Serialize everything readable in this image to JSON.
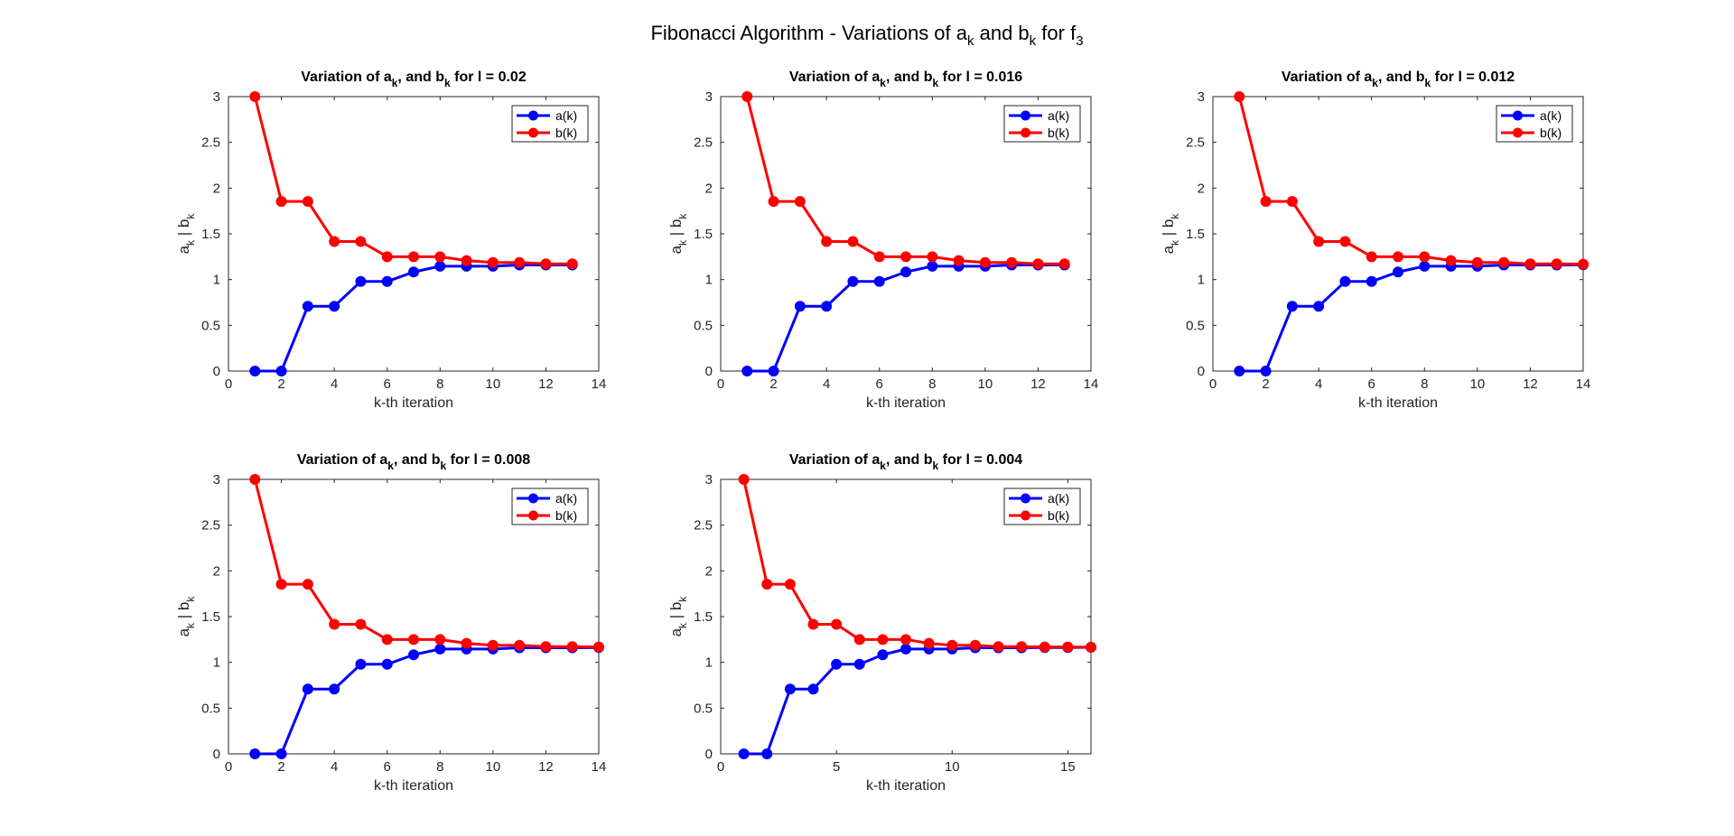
{
  "figure": {
    "title_main": "Fibonacci Algorithm - Variations of a",
    "title_sub1": "k",
    "title_mid": " and b",
    "title_sub2": "k",
    "title_end": " for f",
    "title_sub3": "3"
  },
  "chart_data": [
    {
      "type": "line",
      "title": "Variation of a_k, and b_k for l = 0.02",
      "title_l": "0.02",
      "xlabel": "k-th iteration",
      "ylabel": "a_k | b_k",
      "xlim": [
        0,
        14
      ],
      "ylim": [
        0,
        3
      ],
      "xticks": [
        0,
        2,
        4,
        6,
        8,
        10,
        12,
        14
      ],
      "yticks": [
        0,
        0.5,
        1,
        1.5,
        2,
        2.5,
        3
      ],
      "legend_position": "top-right",
      "grid": false,
      "series": [
        {
          "name": "a(k)",
          "color": "#0000ff",
          "x": [
            1,
            2,
            3,
            4,
            5,
            6,
            7,
            8,
            9,
            10,
            11,
            12,
            13
          ],
          "y": [
            0,
            0,
            0.708,
            0.708,
            0.979,
            0.979,
            1.083,
            1.146,
            1.146,
            1.146,
            1.159,
            1.159,
            1.159
          ]
        },
        {
          "name": "b(k)",
          "color": "#ff0000",
          "x": [
            1,
            2,
            3,
            4,
            5,
            6,
            7,
            8,
            9,
            10,
            11,
            12,
            13
          ],
          "y": [
            3,
            1.854,
            1.854,
            1.416,
            1.416,
            1.25,
            1.25,
            1.25,
            1.208,
            1.187,
            1.187,
            1.172,
            1.172
          ]
        }
      ]
    },
    {
      "type": "line",
      "title": "Variation of a_k, and b_k for l = 0.016",
      "title_l": "0.016",
      "xlabel": "k-th iteration",
      "ylabel": "a_k | b_k",
      "xlim": [
        0,
        14
      ],
      "ylim": [
        0,
        3
      ],
      "xticks": [
        0,
        2,
        4,
        6,
        8,
        10,
        12,
        14
      ],
      "yticks": [
        0,
        0.5,
        1,
        1.5,
        2,
        2.5,
        3
      ],
      "legend_position": "top-right",
      "grid": false,
      "series": [
        {
          "name": "a(k)",
          "color": "#0000ff",
          "x": [
            1,
            2,
            3,
            4,
            5,
            6,
            7,
            8,
            9,
            10,
            11,
            12,
            13
          ],
          "y": [
            0,
            0,
            0.708,
            0.708,
            0.979,
            0.979,
            1.083,
            1.146,
            1.146,
            1.146,
            1.159,
            1.159,
            1.159
          ]
        },
        {
          "name": "b(k)",
          "color": "#ff0000",
          "x": [
            1,
            2,
            3,
            4,
            5,
            6,
            7,
            8,
            9,
            10,
            11,
            12,
            13
          ],
          "y": [
            3,
            1.854,
            1.854,
            1.416,
            1.416,
            1.25,
            1.25,
            1.25,
            1.208,
            1.187,
            1.187,
            1.172,
            1.172
          ]
        }
      ]
    },
    {
      "type": "line",
      "title": "Variation of a_k, and b_k for l = 0.012",
      "title_l": "0.012",
      "xlabel": "k-th iteration",
      "ylabel": "a_k | b_k",
      "xlim": [
        0,
        14
      ],
      "ylim": [
        0,
        3
      ],
      "xticks": [
        0,
        2,
        4,
        6,
        8,
        10,
        12,
        14
      ],
      "yticks": [
        0,
        0.5,
        1,
        1.5,
        2,
        2.5,
        3
      ],
      "legend_position": "top-right",
      "grid": false,
      "series": [
        {
          "name": "a(k)",
          "color": "#0000ff",
          "x": [
            1,
            2,
            3,
            4,
            5,
            6,
            7,
            8,
            9,
            10,
            11,
            12,
            13,
            14
          ],
          "y": [
            0,
            0,
            0.708,
            0.708,
            0.979,
            0.979,
            1.083,
            1.146,
            1.146,
            1.146,
            1.159,
            1.159,
            1.159,
            1.162
          ]
        },
        {
          "name": "b(k)",
          "color": "#ff0000",
          "x": [
            1,
            2,
            3,
            4,
            5,
            6,
            7,
            8,
            9,
            10,
            11,
            12,
            13,
            14
          ],
          "y": [
            3,
            1.854,
            1.854,
            1.416,
            1.416,
            1.25,
            1.25,
            1.25,
            1.208,
            1.187,
            1.187,
            1.172,
            1.172,
            1.168
          ]
        }
      ]
    },
    {
      "type": "line",
      "title": "Variation of a_k, and b_k for l = 0.008",
      "title_l": "0.008",
      "xlabel": "k-th iteration",
      "ylabel": "a_k | b_k",
      "xlim": [
        0,
        14
      ],
      "ylim": [
        0,
        3
      ],
      "xticks": [
        0,
        2,
        4,
        6,
        8,
        10,
        12,
        14
      ],
      "yticks": [
        0,
        0.5,
        1,
        1.5,
        2,
        2.5,
        3
      ],
      "legend_position": "top-right",
      "grid": false,
      "series": [
        {
          "name": "a(k)",
          "color": "#0000ff",
          "x": [
            1,
            2,
            3,
            4,
            5,
            6,
            7,
            8,
            9,
            10,
            11,
            12,
            13,
            14
          ],
          "y": [
            0,
            0,
            0.708,
            0.708,
            0.979,
            0.979,
            1.083,
            1.146,
            1.146,
            1.146,
            1.159,
            1.159,
            1.159,
            1.162
          ]
        },
        {
          "name": "b(k)",
          "color": "#ff0000",
          "x": [
            1,
            2,
            3,
            4,
            5,
            6,
            7,
            8,
            9,
            10,
            11,
            12,
            13,
            14
          ],
          "y": [
            3,
            1.854,
            1.854,
            1.416,
            1.416,
            1.25,
            1.25,
            1.25,
            1.208,
            1.187,
            1.187,
            1.172,
            1.172,
            1.168
          ]
        }
      ]
    },
    {
      "type": "line",
      "title": "Variation of a_k, and b_k for l = 0.004",
      "title_l": "0.004",
      "xlabel": "k-th iteration",
      "ylabel": "a_k | b_k",
      "xlim": [
        0,
        16
      ],
      "ylim": [
        0,
        3
      ],
      "xticks": [
        0,
        5,
        10,
        15
      ],
      "yticks": [
        0,
        0.5,
        1,
        1.5,
        2,
        2.5,
        3
      ],
      "legend_position": "top-right",
      "grid": false,
      "series": [
        {
          "name": "a(k)",
          "color": "#0000ff",
          "x": [
            1,
            2,
            3,
            4,
            5,
            6,
            7,
            8,
            9,
            10,
            11,
            12,
            13,
            14,
            15,
            16
          ],
          "y": [
            0,
            0,
            0.708,
            0.708,
            0.979,
            0.979,
            1.083,
            1.146,
            1.146,
            1.146,
            1.159,
            1.159,
            1.159,
            1.162,
            1.162,
            1.164
          ]
        },
        {
          "name": "b(k)",
          "color": "#ff0000",
          "x": [
            1,
            2,
            3,
            4,
            5,
            6,
            7,
            8,
            9,
            10,
            11,
            12,
            13,
            14,
            15,
            16
          ],
          "y": [
            3,
            1.854,
            1.854,
            1.416,
            1.416,
            1.25,
            1.25,
            1.25,
            1.208,
            1.187,
            1.187,
            1.172,
            1.172,
            1.168,
            1.168,
            1.166
          ]
        }
      ]
    }
  ]
}
